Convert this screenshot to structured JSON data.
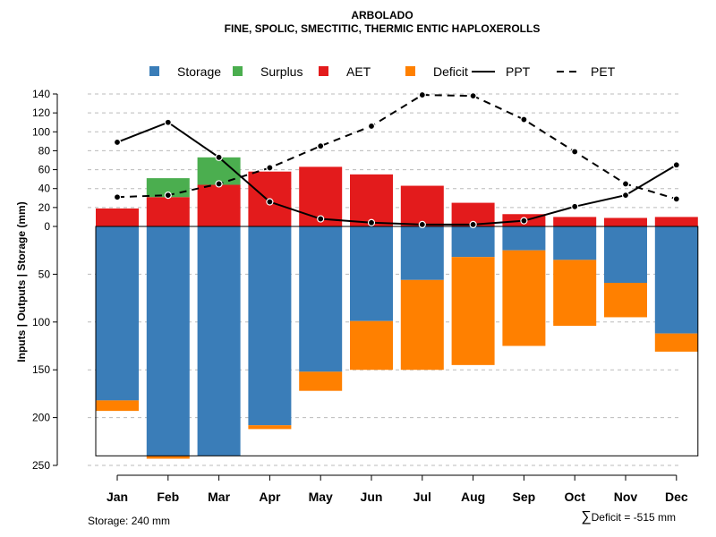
{
  "chart_data": {
    "type": "bar",
    "title": "ARBOLADO",
    "subtitle": "FINE, SPOLIC, SMECTITIC, THERMIC ENTIC HAPLOXEROLLS",
    "ylabel": "Inputs | Outputs | Storage    (mm)",
    "categories": [
      "Jan",
      "Feb",
      "Mar",
      "Apr",
      "May",
      "Jun",
      "Jul",
      "Aug",
      "Sep",
      "Oct",
      "Nov",
      "Dec"
    ],
    "upper_axis": {
      "range": [
        0,
        140
      ],
      "ticks": [
        0,
        20,
        40,
        60,
        80,
        100,
        120,
        140
      ],
      "tick_labels": [
        "0",
        "20",
        "40",
        "60",
        "80",
        "100",
        "120",
        "140"
      ]
    },
    "lower_axis": {
      "range": [
        0,
        250
      ],
      "ticks": [
        0,
        50,
        100,
        150,
        200,
        250
      ],
      "tick_labels": [
        "",
        "50",
        "100",
        "150",
        "200",
        "250"
      ]
    },
    "aet": [
      19,
      31,
      44,
      58,
      63,
      55,
      43,
      25,
      13,
      10,
      9,
      10
    ],
    "surplus": [
      0,
      20,
      29,
      0,
      0,
      0,
      0,
      0,
      0,
      0,
      0,
      0
    ],
    "storage": [
      182,
      240,
      240,
      208,
      152,
      99,
      56,
      32,
      25,
      35,
      59,
      112
    ],
    "deficit": [
      11,
      3,
      0,
      4,
      20,
      51,
      94,
      113,
      100,
      69,
      36,
      19
    ],
    "ppt": [
      89,
      110,
      73,
      26,
      8,
      4,
      2,
      2,
      6,
      21,
      33,
      65
    ],
    "pet": [
      31,
      33,
      45,
      62,
      85,
      106,
      139,
      138,
      113,
      79,
      45,
      29
    ],
    "storage_capacity": 240,
    "legend": [
      {
        "label": "Storage",
        "kind": "box",
        "color": "#3A7DB8"
      },
      {
        "label": "Surplus",
        "kind": "box",
        "color": "#4BAE4F"
      },
      {
        "label": "AET",
        "kind": "box",
        "color": "#E31B1C"
      },
      {
        "label": "Deficit",
        "kind": "box",
        "color": "#FF8000"
      },
      {
        "label": "PPT",
        "kind": "solid-line",
        "color": "#000000"
      },
      {
        "label": "PET",
        "kind": "dashed-line",
        "color": "#000000"
      }
    ],
    "legend_position": "top",
    "grid": true,
    "colors": {
      "storage": "#3A7DB8",
      "surplus": "#4BAE4F",
      "aet": "#E31B1C",
      "deficit": "#FF8000",
      "line": "#000000",
      "grid": "#BBBBBB"
    }
  },
  "footer": {
    "storage_text": "Storage: 240 mm",
    "deficit_symbol": "∑",
    "deficit_text": "Deficit = -515 mm"
  }
}
